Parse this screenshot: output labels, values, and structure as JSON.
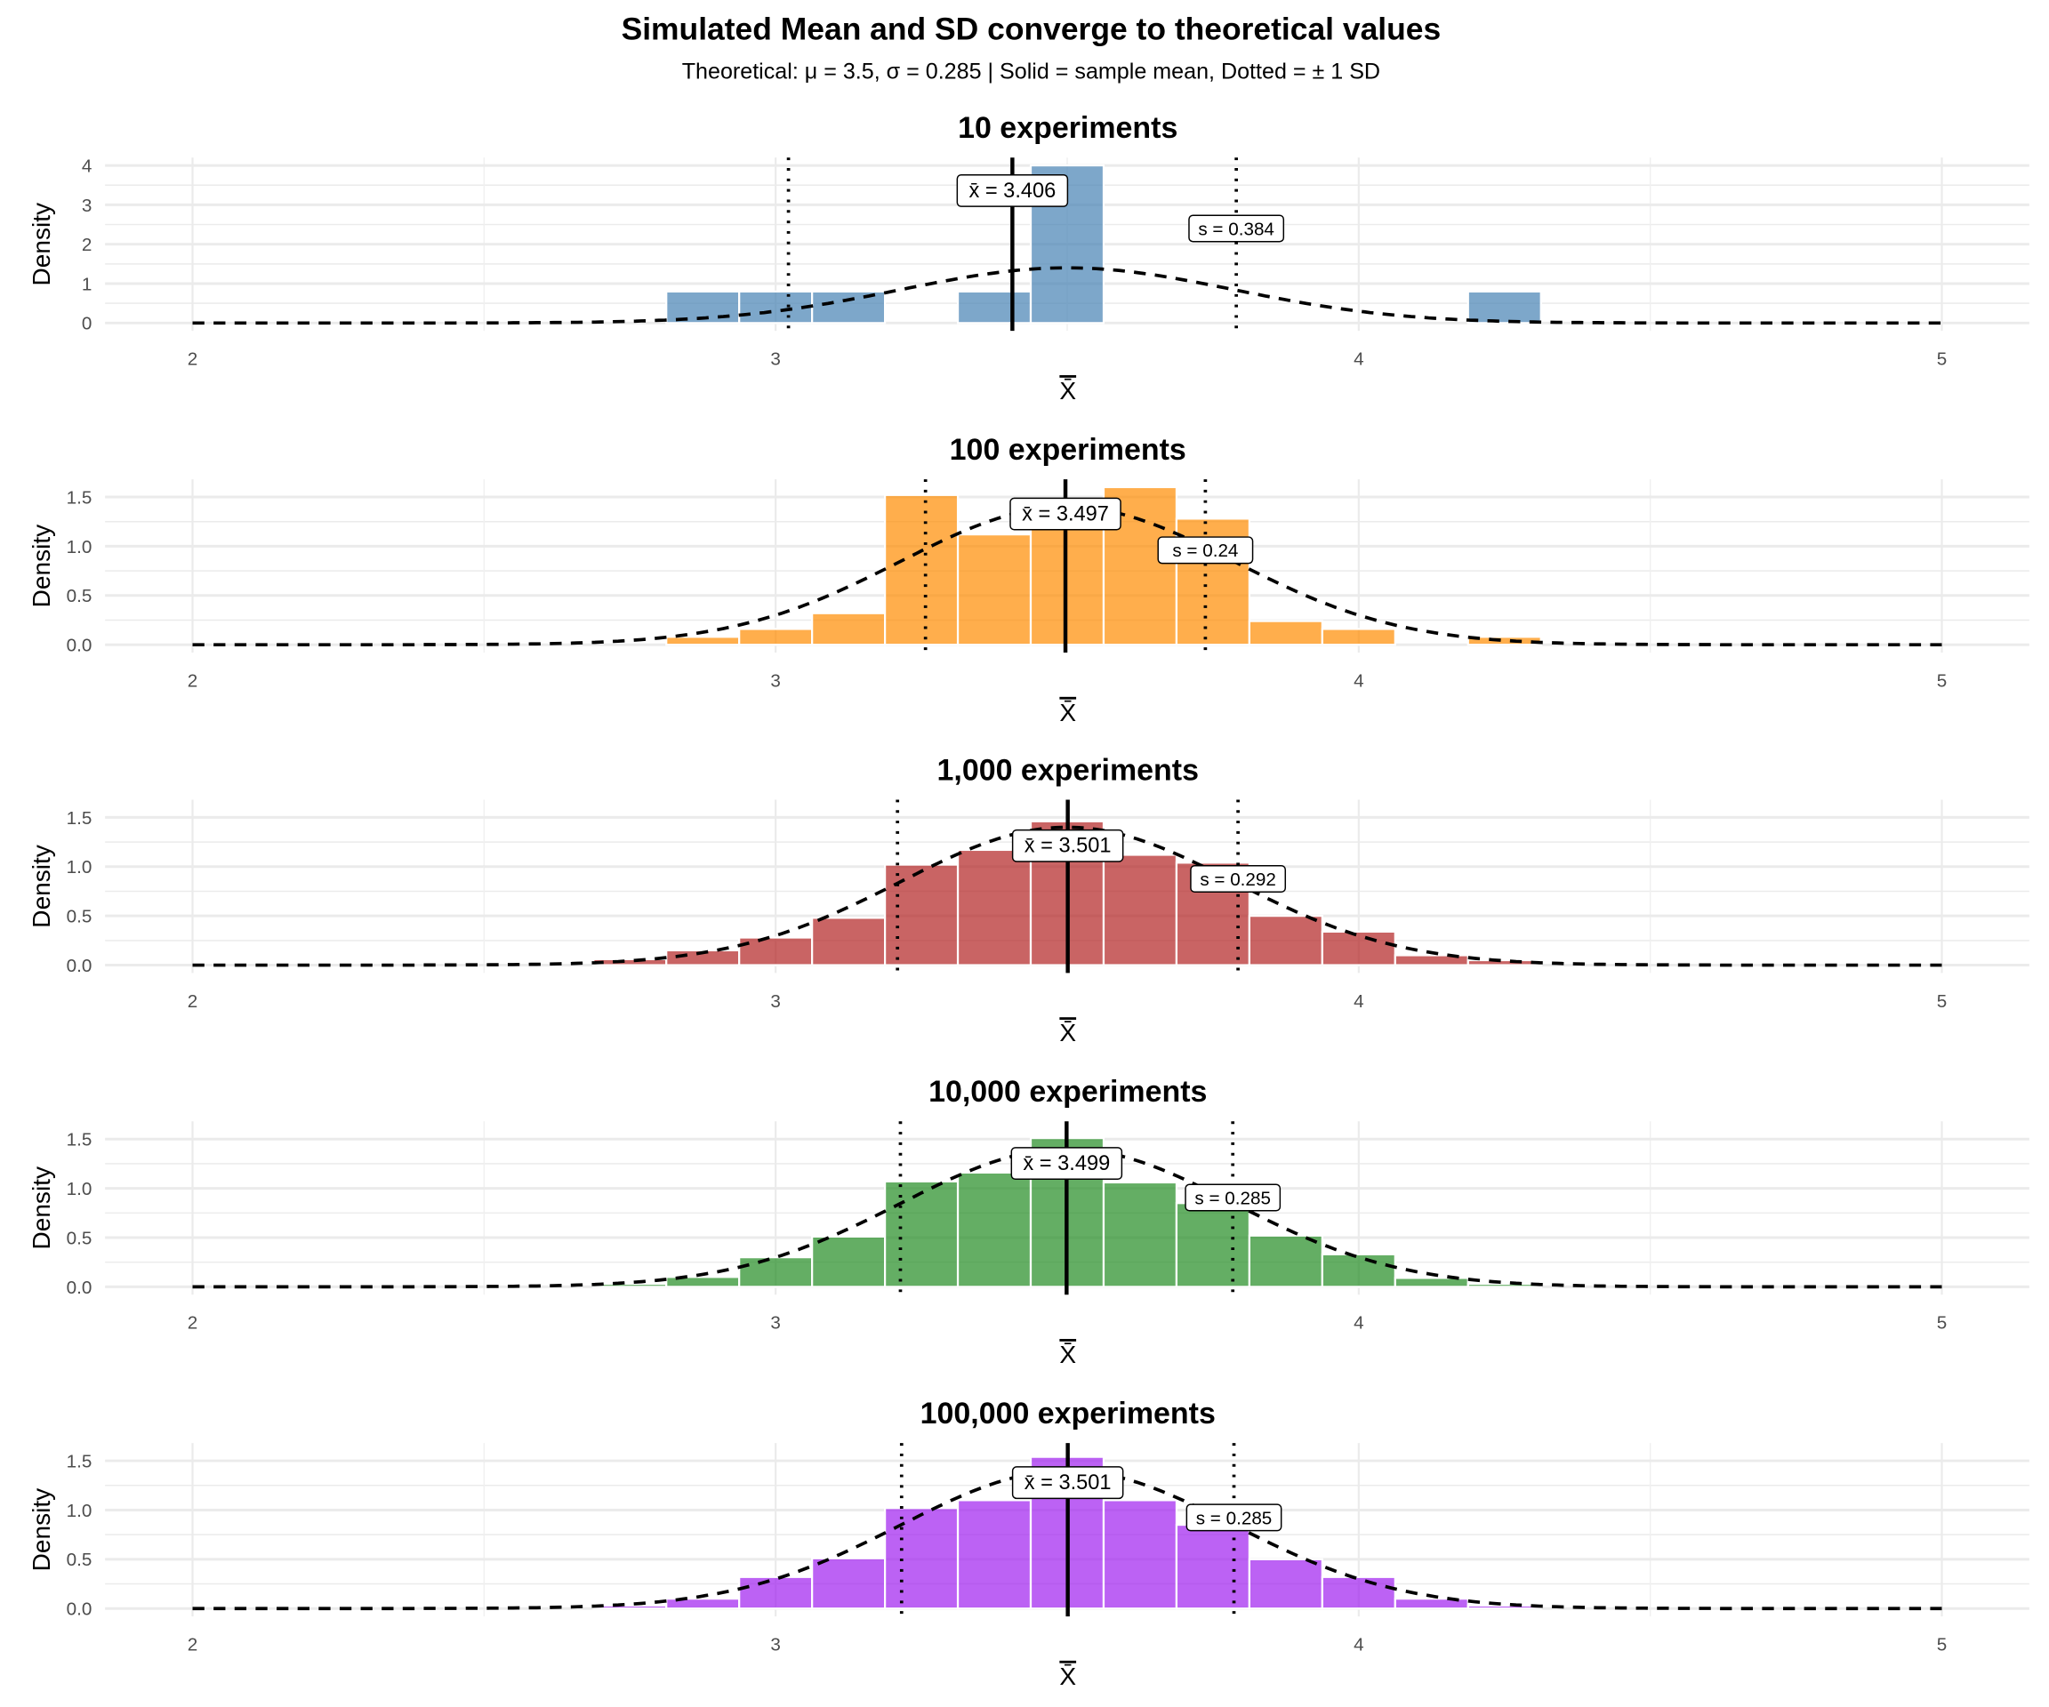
{
  "figure": {
    "title": "Simulated Mean and SD converge to theoretical values",
    "subtitle": "Theoretical: μ = 3.5,  σ = 0.285  |  Solid = sample mean, Dotted = ± 1 SD",
    "theoretical_mean": 3.5,
    "theoretical_sd": 0.285
  },
  "chart_data": [
    {
      "type": "bar",
      "title": "10 experiments",
      "xlabel": "X̄",
      "ylabel": "Density",
      "xlim": [
        1.85,
        5.15
      ],
      "ylim": [
        -0.2,
        4.2
      ],
      "xticks": [
        "2",
        "3",
        "4",
        "5"
      ],
      "yticks": [
        "0",
        "1",
        "2",
        "3",
        "4"
      ],
      "ytick_values": [
        0,
        1,
        2,
        3,
        4
      ],
      "color": "#4682B4",
      "bin_width": 0.125,
      "bin_centers": [
        2.875,
        3.0,
        3.125,
        3.375,
        3.5,
        4.25
      ],
      "values": [
        0.8,
        0.8,
        0.8,
        0.8,
        4.0,
        0.8
      ],
      "mean": 3.406,
      "sd": 0.384,
      "mean_label": "x̄ = 3.406",
      "sd_label": "s = 0.384"
    },
    {
      "type": "bar",
      "title": "100 experiments",
      "xlabel": "X̄",
      "ylabel": "Density",
      "xlim": [
        1.85,
        5.15
      ],
      "ylim": [
        -0.08,
        1.68
      ],
      "xticks": [
        "2",
        "3",
        "4",
        "5"
      ],
      "yticks": [
        "0.0",
        "0.5",
        "1.0",
        "1.5"
      ],
      "ytick_values": [
        0,
        0.5,
        1,
        1.5
      ],
      "color": "#FF8C00",
      "bin_width": 0.125,
      "bin_centers": [
        2.875,
        3.0,
        3.125,
        3.25,
        3.375,
        3.5,
        3.625,
        3.75,
        3.875,
        4.0,
        4.25
      ],
      "values": [
        0.08,
        0.16,
        0.32,
        1.52,
        1.12,
        1.44,
        1.6,
        1.28,
        0.24,
        0.16,
        0.08
      ],
      "mean": 3.497,
      "sd": 0.24,
      "mean_label": "x̄ = 3.497",
      "sd_label": "s = 0.24"
    },
    {
      "type": "bar",
      "title": "1,000 experiments",
      "xlabel": "X̄",
      "ylabel": "Density",
      "xlim": [
        1.85,
        5.15
      ],
      "ylim": [
        -0.08,
        1.68
      ],
      "xticks": [
        "2",
        "3",
        "4",
        "5"
      ],
      "yticks": [
        "0.0",
        "0.5",
        "1.0",
        "1.5"
      ],
      "ytick_values": [
        0,
        0.5,
        1,
        1.5
      ],
      "color": "#B22222",
      "bin_width": 0.125,
      "bin_centers": [
        2.75,
        2.875,
        3.0,
        3.125,
        3.25,
        3.375,
        3.5,
        3.625,
        3.75,
        3.875,
        4.0,
        4.125,
        4.25
      ],
      "values": [
        0.06,
        0.15,
        0.28,
        0.48,
        1.02,
        1.17,
        1.46,
        1.12,
        1.04,
        0.5,
        0.34,
        0.1,
        0.05
      ],
      "mean": 3.501,
      "sd": 0.292,
      "mean_label": "x̄ = 3.501",
      "sd_label": "s = 0.292"
    },
    {
      "type": "bar",
      "title": "10,000 experiments",
      "xlabel": "X̄",
      "ylabel": "Density",
      "xlim": [
        1.85,
        5.15
      ],
      "ylim": [
        -0.08,
        1.68
      ],
      "xticks": [
        "2",
        "3",
        "4",
        "5"
      ],
      "yticks": [
        "0.0",
        "0.5",
        "1.0",
        "1.5"
      ],
      "ytick_values": [
        0,
        0.5,
        1,
        1.5
      ],
      "color": "#228B22",
      "bin_width": 0.125,
      "bin_centers": [
        2.75,
        2.875,
        3.0,
        3.125,
        3.25,
        3.375,
        3.5,
        3.625,
        3.75,
        3.875,
        4.0,
        4.125,
        4.25
      ],
      "values": [
        0.03,
        0.1,
        0.3,
        0.51,
        1.07,
        1.16,
        1.51,
        1.06,
        0.85,
        0.52,
        0.33,
        0.09,
        0.03
      ],
      "mean": 3.499,
      "sd": 0.285,
      "mean_label": "x̄ = 3.499",
      "sd_label": "s = 0.285"
    },
    {
      "type": "bar",
      "title": "100,000 experiments",
      "xlabel": "X̄",
      "ylabel": "Density",
      "xlim": [
        1.85,
        5.15
      ],
      "ylim": [
        -0.08,
        1.68
      ],
      "xticks": [
        "2",
        "3",
        "4",
        "5"
      ],
      "yticks": [
        "0.0",
        "0.5",
        "1.0",
        "1.5"
      ],
      "ytick_values": [
        0,
        0.5,
        1,
        1.5
      ],
      "color": "#A020F0",
      "bin_width": 0.125,
      "bin_centers": [
        2.75,
        2.875,
        3.0,
        3.125,
        3.25,
        3.375,
        3.5,
        3.625,
        3.75,
        3.875,
        4.0,
        4.125,
        4.25
      ],
      "values": [
        0.03,
        0.1,
        0.32,
        0.51,
        1.02,
        1.1,
        1.54,
        1.1,
        0.85,
        0.5,
        0.32,
        0.1,
        0.03
      ],
      "mean": 3.501,
      "sd": 0.285,
      "mean_label": "x̄ = 3.501",
      "sd_label": "s = 0.285"
    }
  ]
}
